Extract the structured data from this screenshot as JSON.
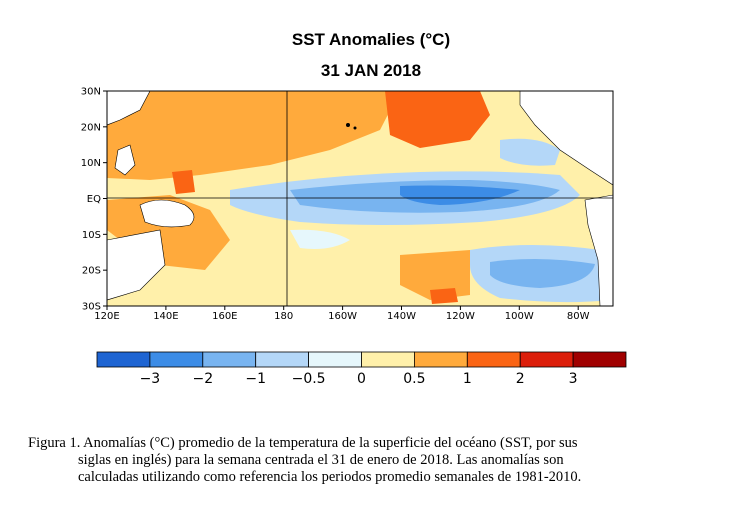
{
  "title": "SST Anomalies (°C)",
  "subtitle": "31 JAN 2018",
  "map": {
    "lat_labels": [
      "30N",
      "20N",
      "10N",
      "EQ",
      "10S",
      "20S",
      "30S"
    ],
    "lon_labels": [
      "120E",
      "140E",
      "160E",
      "180",
      "160W",
      "140W",
      "120W",
      "100W",
      "80W"
    ]
  },
  "colorbar": {
    "colors": [
      "#1e64d2",
      "#3c8ce6",
      "#78b4f0",
      "#b4d7f8",
      "#e6f7fc",
      "#fff0aa",
      "#ffaa3c",
      "#fa6414",
      "#dc1e0a",
      "#a00000"
    ],
    "labels": [
      "−3",
      "−2",
      "−1",
      "−0.5",
      "0",
      "0.5",
      "1",
      "2",
      "3"
    ]
  },
  "caption": {
    "line1": "Figura 1. Anomalías (°C) promedio de la temperatura de la superficie del océano (SST, por sus",
    "line2": "siglas en inglés) para la semana centrada el 31 de enero de 2018. Las anomalías son",
    "line3": "calculadas utilizando como referencia los periodos promedio semanales de 1981-2010."
  }
}
